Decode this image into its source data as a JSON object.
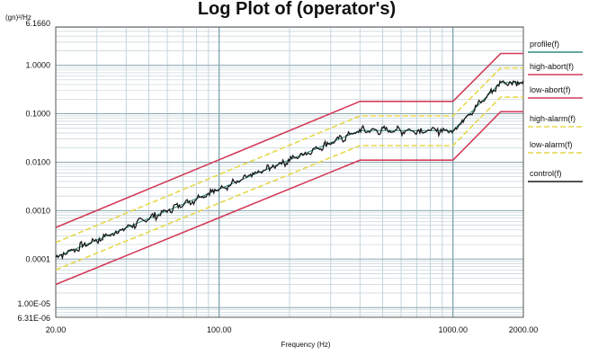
{
  "chart_data": {
    "type": "line",
    "title": "Log Plot of (operator's)",
    "ylabel": "(gn)²/Hz",
    "xlabel": "Frequency (Hz)",
    "x_scale": "log",
    "y_scale": "log",
    "xlim": [
      20,
      2000
    ],
    "ylim": [
      6.31e-06,
      6.166
    ],
    "x_ticks": [
      {
        "value": 20,
        "label": "20.00"
      },
      {
        "value": 100,
        "label": "100.00"
      },
      {
        "value": 1000,
        "label": "1000.00"
      },
      {
        "value": 2000,
        "label": "2000.00"
      }
    ],
    "y_ticks": [
      {
        "value": 6.166,
        "label": "6.1660"
      },
      {
        "value": 1,
        "label": "1.0000"
      },
      {
        "value": 0.1,
        "label": "0.1000"
      },
      {
        "value": 0.01,
        "label": "0.0100"
      },
      {
        "value": 0.001,
        "label": "0.0010"
      },
      {
        "value": 0.0001,
        "label": "0.0001"
      },
      {
        "value": 1e-05,
        "label": "1.00E-05"
      },
      {
        "value": 6.31e-06,
        "label": "6.31E-06"
      }
    ],
    "grid": true,
    "legend_position": "right",
    "series": [
      {
        "name": "profile(f)",
        "color": "#2e8b7a",
        "style": "thin",
        "x": [
          20,
          400,
          1000,
          1600,
          2000
        ],
        "y": [
          0.00011,
          0.045,
          0.045,
          0.44,
          0.44
        ]
      },
      {
        "name": "high-abort(f)",
        "color": "#d23c5a",
        "style": "solid",
        "x": [
          20,
          400,
          1000,
          1600,
          2000
        ],
        "y": [
          0.00045,
          0.18,
          0.18,
          1.75,
          1.75
        ]
      },
      {
        "name": "low-abort(f)",
        "color": "#d23c5a",
        "style": "solid",
        "x": [
          20,
          400,
          1000,
          1600,
          2000
        ],
        "y": [
          3e-05,
          0.011,
          0.011,
          0.11,
          0.11
        ]
      },
      {
        "name": "high-alarm(f)",
        "color": "#e6d84a",
        "style": "dashed",
        "x": [
          20,
          400,
          1000,
          1600,
          2000
        ],
        "y": [
          0.00022,
          0.09,
          0.09,
          0.88,
          0.88
        ]
      },
      {
        "name": "low-alarm(f)",
        "color": "#e6d84a",
        "style": "dashed",
        "x": [
          20,
          400,
          1000,
          1600,
          2000
        ],
        "y": [
          6e-05,
          0.022,
          0.022,
          0.22,
          0.22
        ]
      },
      {
        "name": "control(f)",
        "color": "#1a1a1a",
        "style": "noisy",
        "x": [
          20,
          400,
          1000,
          1600,
          2000
        ],
        "y": [
          0.00011,
          0.045,
          0.045,
          0.44,
          0.44
        ]
      }
    ]
  }
}
